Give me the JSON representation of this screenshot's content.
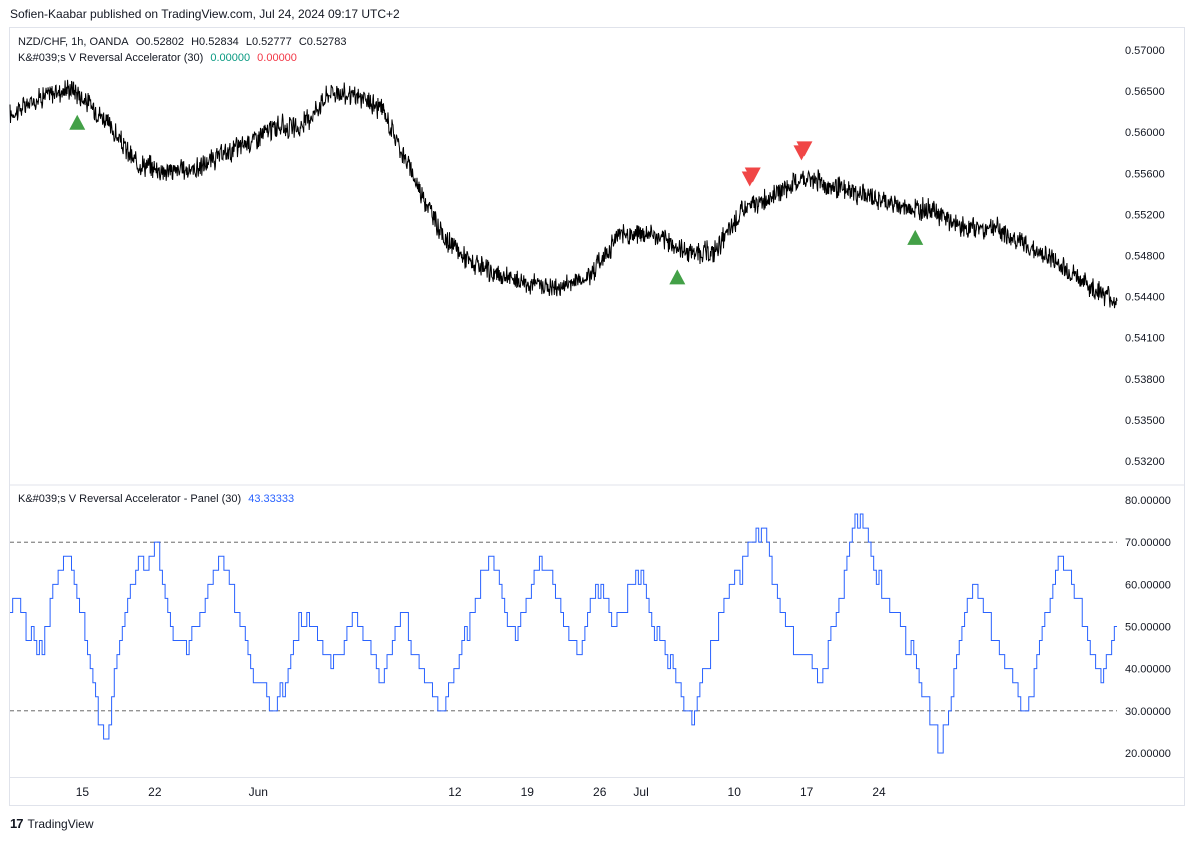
{
  "header": {
    "text": "Sofien-Kaabar published on TradingView.com, Jul 24, 2024 09:17 UTC+2"
  },
  "price_legend": {
    "symbol_line": "NZD/CHF, 1h, OANDA",
    "open": "O0.52802",
    "high": "H0.52834",
    "low": "L0.52777",
    "close": "C0.52783",
    "indicator_name": "K&#039;s V Reversal Accelerator (30)",
    "indicator_val1": "0.00000",
    "indicator_val2": "0.00000"
  },
  "panel_legend": {
    "name": "K&#039;s V Reversal Accelerator - Panel (30)",
    "value": "43.33333"
  },
  "footer": {
    "brand": "TradingView",
    "logo_glyph": "17"
  },
  "colors": {
    "price_line": "#000000",
    "panel_line": "#2962ff",
    "buy": "#43a047",
    "sell": "#f04646",
    "level_line": "#555555"
  },
  "chart_data": [
    {
      "type": "line",
      "series": [
        {
          "x": [
            0,
            3,
            6,
            9,
            12,
            15,
            18,
            20,
            23,
            26,
            28,
            31,
            34,
            36,
            39,
            42,
            45,
            47,
            50,
            53,
            56,
            59,
            62,
            65,
            68,
            71,
            74,
            77,
            80,
            83,
            86,
            89,
            92,
            95,
            98,
            101,
            104,
            107
          ],
          "values": [
            0.564,
            0.5657,
            0.5665,
            0.5638,
            0.5597,
            0.5588,
            0.559,
            0.56,
            0.5615,
            0.563,
            0.5627,
            0.5662,
            0.5655,
            0.5645,
            0.5583,
            0.5525,
            0.55,
            0.5492,
            0.5485,
            0.548,
            0.5492,
            0.553,
            0.553,
            0.5515,
            0.5512,
            0.5553,
            0.5567,
            0.5582,
            0.5572,
            0.5565,
            0.5555,
            0.5553,
            0.5535,
            0.5537,
            0.552,
            0.5505,
            0.5484,
            0.5468
          ]
        }
      ],
      "x_ticks": [
        {
          "label": "15",
          "x": 7
        },
        {
          "label": "22",
          "x": 14
        },
        {
          "label": "Jun",
          "x": 24
        },
        {
          "label": "12",
          "x": 43
        },
        {
          "label": "19",
          "x": 50
        },
        {
          "label": "26",
          "x": 57
        },
        {
          "label": "Jul",
          "x": 61
        },
        {
          "label": "10",
          "x": 70
        },
        {
          "label": "17",
          "x": 77
        },
        {
          "label": "24",
          "x": 84
        }
      ],
      "y_ticks": [
        "0.57000",
        "0.56500",
        "0.56000",
        "0.55600",
        "0.55200",
        "0.54800",
        "0.54400",
        "0.54100",
        "0.53800",
        "0.53500",
        "0.53200"
      ],
      "signals": [
        {
          "type": "buy",
          "x": 6.5
        },
        {
          "type": "buy",
          "x": 64.5
        },
        {
          "type": "sell",
          "x": 71.5
        },
        {
          "type": "sell",
          "x": 76.5
        },
        {
          "type": "buy",
          "x": 87.5
        }
      ]
    },
    {
      "type": "line",
      "series": [
        {
          "name": "K&#039;s V Reversal Accelerator - Panel (30)",
          "values": [
            53,
            57,
            50,
            47,
            43,
            55,
            65,
            67,
            60,
            50,
            40,
            27,
            20,
            40,
            50,
            60,
            67,
            63,
            70,
            60,
            50,
            45,
            45,
            50,
            55,
            60,
            67,
            63,
            55,
            50,
            40,
            38,
            33,
            30,
            36,
            43,
            50,
            53,
            50,
            45,
            40,
            43,
            50,
            55,
            47,
            43,
            37,
            40,
            50,
            53,
            45,
            40,
            35,
            33,
            30,
            37,
            43,
            50,
            57,
            63,
            67,
            60,
            50,
            47,
            53,
            60,
            67,
            63,
            57,
            50,
            47,
            43,
            53,
            60,
            57,
            53,
            50,
            57,
            63,
            60,
            50,
            45,
            43,
            37,
            33,
            27,
            37,
            43,
            50,
            57,
            60,
            63,
            67,
            73,
            70,
            63,
            55,
            50,
            45,
            43,
            40,
            37,
            45,
            53,
            63,
            73,
            77,
            70,
            63,
            57,
            53,
            50,
            45,
            40,
            33,
            27,
            20,
            30,
            43,
            53,
            60,
            57,
            50,
            45,
            40,
            37,
            30,
            33,
            43,
            53,
            60,
            67,
            63,
            57,
            50,
            43,
            40,
            43,
            57
          ]
        }
      ],
      "x_ticks": [
        "15",
        "22",
        "Jun",
        "12",
        "19",
        "26",
        "Jul",
        "10",
        "17",
        "24"
      ],
      "y_ticks": [
        "80.00000",
        "70.00000",
        "60.00000",
        "50.00000",
        "40.00000",
        "30.00000",
        "20.00000"
      ],
      "levels": [
        70,
        30
      ]
    }
  ]
}
